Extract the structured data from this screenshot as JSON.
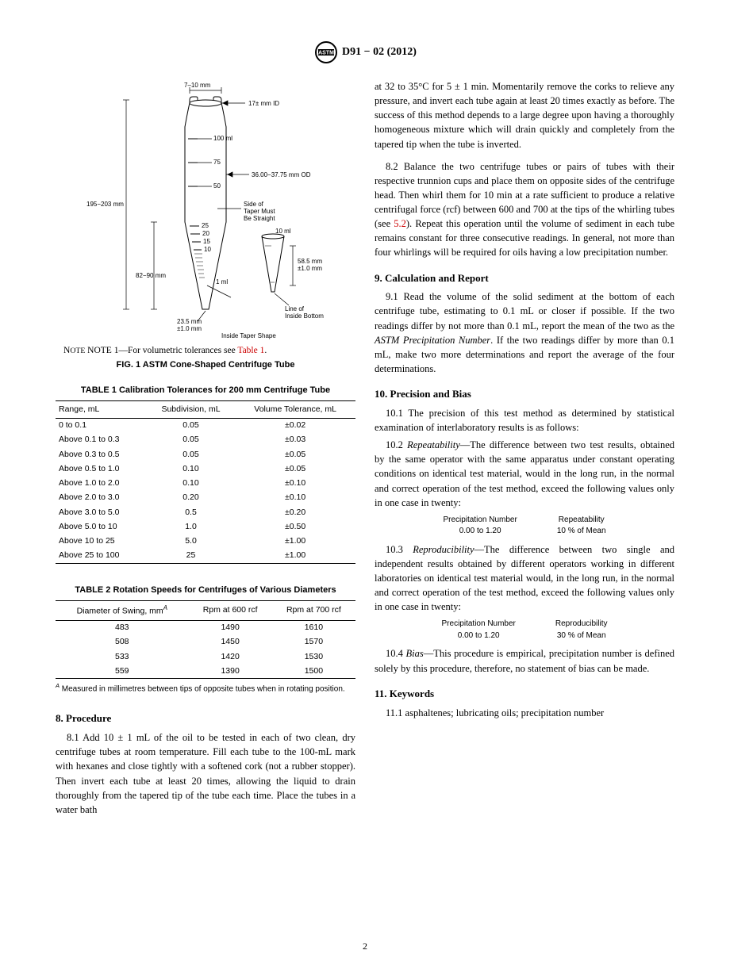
{
  "header": {
    "docnum": "D91 − 02 (2012)"
  },
  "figure1": {
    "note_prefix": "NOTE 1—For volumetric tolerances see ",
    "note_linktext": "Table 1",
    "note_suffix": ".",
    "caption": "FIG. 1 ASTM Cone-Shaped Centrifuge Tube",
    "labels": {
      "top_width": "7–10 mm",
      "id": "17± mm ID",
      "ml100": "100 ml",
      "ml75": "75",
      "od": "36.00−37.75 mm OD",
      "ml50": "50",
      "taper": "Side of Taper Must Be Straight",
      "ml10_small": "10 ml",
      "height": "195−203 mm",
      "ml25": "25",
      "ml20": "20",
      "ml15": "15",
      "ml10": "10",
      "lower_height": "82−90 mm",
      "ml1": "1 ml",
      "r1": "58.5 mm ±1.0 mm",
      "r2": "23.5 mm ±1.0 mm",
      "line": "Line of Inside Bottom",
      "inside": "Inside Taper Shape"
    }
  },
  "table1": {
    "caption": "TABLE 1 Calibration Tolerances for 200 mm Centrifuge Tube",
    "columns": [
      "Range, mL",
      "Subdivision, mL",
      "Volume Tolerance, mL"
    ],
    "rows": [
      [
        "0 to 0.1",
        "0.05",
        "±0.02"
      ],
      [
        "Above 0.1 to 0.3",
        "0.05",
        "±0.03"
      ],
      [
        "Above 0.3 to 0.5",
        "0.05",
        "±0.05"
      ],
      [
        "Above 0.5 to 1.0",
        "0.10",
        "±0.05"
      ],
      [
        "Above 1.0 to 2.0",
        "0.10",
        "±0.10"
      ],
      [
        "Above 2.0 to 3.0",
        "0.20",
        "±0.10"
      ],
      [
        "Above 3.0 to 5.0",
        "0.5",
        "±0.20"
      ],
      [
        "Above 5.0 to 10",
        "1.0",
        "±0.50"
      ],
      [
        "Above 10 to 25",
        "5.0",
        "±1.00"
      ],
      [
        "Above 25 to 100",
        "25",
        "±1.00"
      ]
    ]
  },
  "table2": {
    "caption": "TABLE 2 Rotation Speeds for Centrifuges of Various Diameters",
    "columns_parts": {
      "c1_pre": "Diameter of Swing, mm",
      "c1_sup": "A",
      "c2": "Rpm at 600 rcf",
      "c3": "Rpm at 700 rcf"
    },
    "rows": [
      [
        "483",
        "1490",
        "1610"
      ],
      [
        "508",
        "1450",
        "1570"
      ],
      [
        "533",
        "1420",
        "1530"
      ],
      [
        "559",
        "1390",
        "1500"
      ]
    ],
    "footnote_sup": "A",
    "footnote": " Measured in millimetres between tips of opposite tubes when in rotating position."
  },
  "section8": {
    "head": "8. Procedure",
    "p81": "8.1 Add 10 ± 1 mL of the oil to be tested in each of two clean, dry centrifuge tubes at room temperature. Fill each tube to the 100-mL mark with hexanes and close tightly with a softened cork (not a rubber stopper). Then invert each tube at least 20 times, allowing the liquid to drain thoroughly from the tapered tip of the tube each time. Place the tubes in a water bath"
  },
  "col2": {
    "p81cont": "at 32 to 35°C for 5 ± 1 min. Momentarily remove the corks to relieve any pressure, and invert each tube again at least 20 times exactly as before. The success of this method depends to a large degree upon having a thoroughly homogeneous mixture which will drain quickly and completely from the tapered tip when the tube is inverted.",
    "p82_pre": "8.2 Balance the two centrifuge tubes or pairs of tubes with their respective trunnion cups and place them on opposite sides of the centrifuge head. Then whirl them for 10 min at a rate sufficient to produce a relative centrifugal force (rcf) between 600 and 700 at the tips of the whirling tubes (see ",
    "p82_link": "5.2",
    "p82_post": "). Repeat this operation until the volume of sediment in each tube remains constant for three consecutive readings. In general, not more than four whirlings will be required for oils having a low precipitation number.",
    "h9": "9. Calculation and Report",
    "p91_pre": "9.1 Read the volume of the solid sediment at the bottom of each centrifuge tube, estimating to 0.1 mL or closer if possible. If the two readings differ by not more than 0.1 mL, report the mean of the two as the ",
    "p91_em": "ASTM Precipitation Number",
    "p91_post": ". If the two readings differ by more than 0.1 mL, make two more determinations and report the average of the four determinations.",
    "h10": "10. Precision and Bias",
    "p101": "10.1 The precision of this test method as determined by statistical examination of interlaboratory results is as follows:",
    "p102_num": "10.2 ",
    "p102_em": "Repeatability",
    "p102_body": "—The difference between two test results, obtained by the same operator with the same apparatus under constant operating conditions on identical test material, would in the long run, in the normal and correct operation of the test method, exceed the following values only in one case in twenty:",
    "mini1": {
      "l1": "Precipitation Number",
      "l2": "0.00 to 1.20",
      "r1": "Repeatability",
      "r2": "10 % of Mean"
    },
    "p103_num": "10.3 ",
    "p103_em": "Reproducibility",
    "p103_body": "—The difference between two single and independent results obtained by different operators working in different laboratories on identical test material would, in the long run, in the normal and correct operation of the test method, exceed the following values only in one case in twenty:",
    "mini2": {
      "l1": "Precipitation Number",
      "l2": "0.00 to 1.20",
      "r1": "Reproducibility",
      "r2": "30 % of Mean"
    },
    "p104_num": "10.4 ",
    "p104_em": "Bias",
    "p104_body": "—This procedure is empirical, precipitation number is defined solely by this procedure, therefore, no statement of bias can be made.",
    "h11": "11. Keywords",
    "p111": "11.1 asphaltenes; lubricating oils; precipitation number"
  },
  "pagenum": "2"
}
